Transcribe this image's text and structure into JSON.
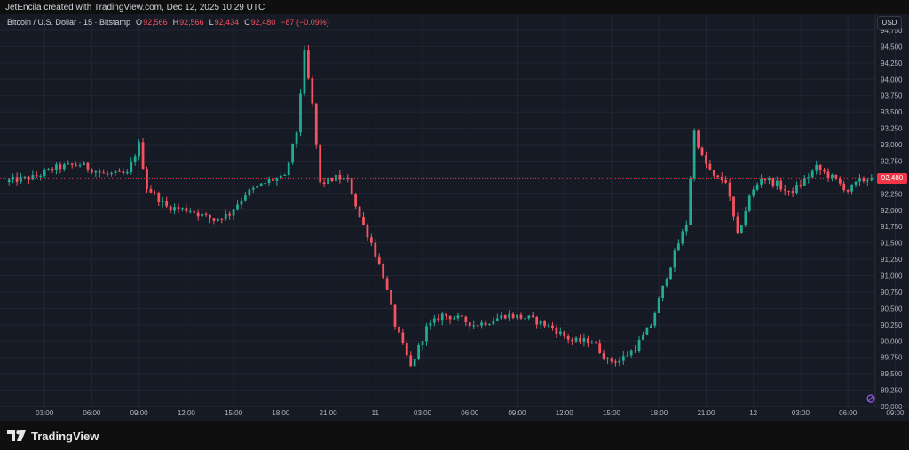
{
  "header": {
    "credit": "JetEncila created with TradingView.com, Dec 12, 2025 10:29 UTC"
  },
  "legend": {
    "symbol": "Bitcoin / U.S. Dollar · 15 · Bitstamp",
    "open_label": "O",
    "open": "92,566",
    "high_label": "H",
    "high": "92,566",
    "low_label": "L",
    "low": "92,434",
    "close_label": "C",
    "close": "92,480",
    "change": "−87 (−0.09%)"
  },
  "currency": "USD",
  "last_price_label": "92,480",
  "footer": {
    "brand": "TradingView",
    "logo_icon": "tradingview-logo-icon"
  },
  "colors": {
    "up": "#22ab94",
    "down": "#f7525f",
    "background": "#161a25",
    "grid": "#232632",
    "axis_text": "#b2b5be",
    "price_line": "#f23645"
  },
  "chart_data": {
    "type": "candlestick",
    "interval": "15m",
    "ylim": [
      89000,
      94750
    ],
    "y_ticks": [
      89000,
      89250,
      89500,
      89750,
      90000,
      90250,
      90500,
      90750,
      91000,
      91250,
      91500,
      91750,
      92000,
      92250,
      92500,
      92750,
      93000,
      93250,
      93500,
      93750,
      94000,
      94250,
      94500,
      94750
    ],
    "y_tick_labels": [
      "89,000",
      "89,250",
      "89,500",
      "89,750",
      "90,000",
      "90,250",
      "90,500",
      "90,750",
      "91,000",
      "91,250",
      "91,500",
      "91,750",
      "92,000",
      "92,250",
      "92,500",
      "92,750",
      "93,000",
      "93,250",
      "93,500",
      "93,750",
      "94,000",
      "94,250",
      "94,500",
      "94,750"
    ],
    "x_tick_labels": [
      "03:00",
      "06:00",
      "09:00",
      "12:00",
      "15:00",
      "18:00",
      "21:00",
      "11",
      "03:00",
      "06:00",
      "09:00",
      "12:00",
      "15:00",
      "18:00",
      "21:00",
      "12",
      "03:00",
      "06:00",
      "09:00"
    ],
    "x_tick_bars": [
      9,
      21,
      33,
      45,
      57,
      69,
      81,
      93,
      105,
      117,
      129,
      141,
      153,
      165,
      177,
      189,
      201,
      213,
      225
    ],
    "last_price": 92480,
    "grid": true,
    "keyframes": [
      [
        0,
        92450
      ],
      [
        6,
        92500
      ],
      [
        12,
        92650
      ],
      [
        18,
        92700
      ],
      [
        24,
        92550
      ],
      [
        30,
        92550
      ],
      [
        33,
        93000
      ],
      [
        35,
        92350
      ],
      [
        40,
        92050
      ],
      [
        46,
        92000
      ],
      [
        52,
        91850
      ],
      [
        56,
        91950
      ],
      [
        60,
        92250
      ],
      [
        66,
        92450
      ],
      [
        70,
        92500
      ],
      [
        73,
        93200
      ],
      [
        75,
        94400
      ],
      [
        77,
        93600
      ],
      [
        79,
        92400
      ],
      [
        83,
        92500
      ],
      [
        86,
        92450
      ],
      [
        89,
        91900
      ],
      [
        92,
        91500
      ],
      [
        95,
        91000
      ],
      [
        98,
        90250
      ],
      [
        102,
        89600
      ],
      [
        106,
        90200
      ],
      [
        110,
        90400
      ],
      [
        114,
        90350
      ],
      [
        118,
        90250
      ],
      [
        122,
        90300
      ],
      [
        126,
        90400
      ],
      [
        132,
        90350
      ],
      [
        138,
        90200
      ],
      [
        143,
        90000
      ],
      [
        148,
        90000
      ],
      [
        152,
        89700
      ],
      [
        155,
        89700
      ],
      [
        159,
        89900
      ],
      [
        163,
        90250
      ],
      [
        167,
        91000
      ],
      [
        170,
        91500
      ],
      [
        172,
        91800
      ],
      [
        174,
        93200
      ],
      [
        176,
        92800
      ],
      [
        179,
        92500
      ],
      [
        182,
        92450
      ],
      [
        185,
        91600
      ],
      [
        188,
        92200
      ],
      [
        191,
        92500
      ],
      [
        195,
        92400
      ],
      [
        198,
        92250
      ],
      [
        201,
        92400
      ],
      [
        205,
        92650
      ],
      [
        209,
        92500
      ],
      [
        213,
        92300
      ],
      [
        216,
        92450
      ],
      [
        219,
        92480
      ]
    ],
    "volatility": 85
  }
}
